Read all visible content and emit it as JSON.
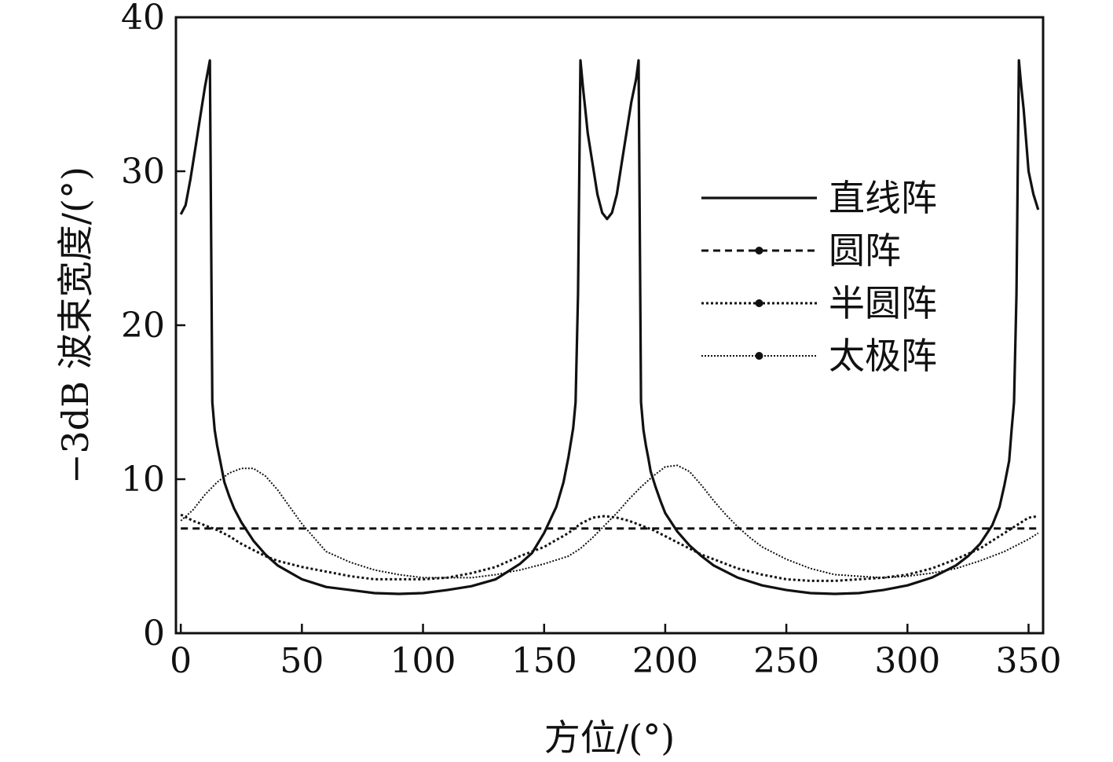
{
  "chart_data": {
    "type": "line",
    "title": "",
    "xlabel": "方位/(°)",
    "ylabel": "−3dB 波束宽度/(°)",
    "xlim": [
      -2,
      356
    ],
    "ylim": [
      0,
      40
    ],
    "xticks": [
      0,
      50,
      100,
      150,
      200,
      250,
      300,
      350
    ],
    "yticks": [
      0,
      10,
      20,
      30,
      40
    ],
    "xtick_labels": [
      "0",
      "50",
      "100",
      "150",
      "200",
      "250",
      "300",
      "350"
    ],
    "ytick_labels": [
      "0",
      "10",
      "20",
      "30",
      "40"
    ],
    "grid": false,
    "legend_position": "top-right",
    "series": [
      {
        "name": "直线阵",
        "style": "solid",
        "x": [
          0,
          2,
          4,
          6,
          8,
          10,
          12,
          13,
          14,
          15,
          16,
          18,
          20,
          22,
          25,
          30,
          35,
          40,
          50,
          60,
          70,
          80,
          90,
          100,
          110,
          120,
          130,
          140,
          145,
          150,
          155,
          158,
          160,
          162,
          163,
          164,
          165,
          166,
          167,
          168,
          170,
          172,
          174,
          176,
          178,
          180,
          182,
          184,
          186,
          188,
          189,
          190,
          191,
          192,
          193,
          194,
          196,
          198,
          200,
          205,
          210,
          215,
          220,
          230,
          240,
          250,
          260,
          270,
          280,
          290,
          300,
          310,
          320,
          325,
          330,
          335,
          338,
          340,
          342,
          343,
          344,
          345,
          346,
          347,
          348,
          350,
          352,
          354
        ],
        "values": [
          27.2,
          27.8,
          29.5,
          31.5,
          33.5,
          35.5,
          37.2,
          15,
          13.2,
          12.2,
          11.4,
          9.8,
          8.9,
          8.1,
          7.2,
          6,
          5.1,
          4.4,
          3.5,
          3,
          2.8,
          2.6,
          2.55,
          2.6,
          2.8,
          3.05,
          3.5,
          4.5,
          5.2,
          6.5,
          8.2,
          9.8,
          11.4,
          13.3,
          15,
          22,
          37.2,
          35.5,
          34,
          32.5,
          30.5,
          28.5,
          27.3,
          26.9,
          27.3,
          28.5,
          30.5,
          32.5,
          34.5,
          36,
          37.2,
          15,
          13.2,
          12.2,
          11.4,
          10.5,
          9.5,
          8.6,
          7.8,
          6.6,
          5.7,
          5,
          4.4,
          3.6,
          3.1,
          2.8,
          2.6,
          2.55,
          2.6,
          2.8,
          3.1,
          3.6,
          4.4,
          5,
          5.8,
          7,
          8.2,
          9.6,
          11.2,
          13.2,
          15,
          22,
          37.2,
          35.5,
          34,
          30,
          28.5,
          27.5
        ]
      },
      {
        "name": "圆阵",
        "style": "dashed",
        "x": [
          0,
          354
        ],
        "values": [
          6.8,
          6.8
        ]
      },
      {
        "name": "半圆阵",
        "style": "dotted",
        "x": [
          0,
          5,
          10,
          15,
          20,
          25,
          30,
          35,
          40,
          50,
          60,
          70,
          80,
          90,
          100,
          110,
          120,
          130,
          140,
          150,
          160,
          165,
          170,
          175,
          180,
          185,
          190,
          195,
          200,
          205,
          210,
          215,
          220,
          230,
          240,
          250,
          260,
          270,
          280,
          290,
          300,
          310,
          320,
          330,
          340,
          350,
          354
        ],
        "values": [
          7.7,
          7.3,
          7,
          6.7,
          6.3,
          5.8,
          5.4,
          5,
          4.7,
          4.3,
          4,
          3.7,
          3.5,
          3.5,
          3.5,
          3.6,
          3.9,
          4.3,
          5,
          5.6,
          6.5,
          7.1,
          7.5,
          7.6,
          7.5,
          7.3,
          7,
          6.7,
          6.3,
          5.9,
          5.5,
          5.1,
          4.8,
          4.2,
          3.8,
          3.5,
          3.4,
          3.4,
          3.5,
          3.6,
          3.8,
          4.2,
          4.8,
          5.5,
          6.5,
          7.5,
          7.6
        ]
      },
      {
        "name": "太极阵",
        "style": "fine-dotted",
        "x": [
          0,
          5,
          10,
          15,
          20,
          25,
          30,
          35,
          40,
          45,
          50,
          55,
          60,
          70,
          80,
          90,
          100,
          110,
          120,
          130,
          140,
          150,
          160,
          165,
          170,
          175,
          180,
          185,
          190,
          195,
          200,
          205,
          210,
          215,
          220,
          225,
          230,
          235,
          240,
          250,
          260,
          270,
          280,
          290,
          300,
          310,
          320,
          330,
          340,
          350,
          354
        ],
        "values": [
          7.3,
          8,
          9,
          9.8,
          10.4,
          10.7,
          10.7,
          10.2,
          9.3,
          8.2,
          7.1,
          6.2,
          5.3,
          4.6,
          4.1,
          3.8,
          3.6,
          3.6,
          3.6,
          3.8,
          4.1,
          4.5,
          5,
          5.5,
          6.2,
          7,
          7.8,
          8.7,
          9.5,
          10.2,
          10.8,
          10.9,
          10.5,
          9.6,
          8.6,
          7.7,
          6.9,
          6.2,
          5.6,
          4.8,
          4.2,
          3.8,
          3.7,
          3.6,
          3.7,
          3.9,
          4.2,
          4.7,
          5.3,
          6.1,
          6.5
        ]
      }
    ]
  }
}
